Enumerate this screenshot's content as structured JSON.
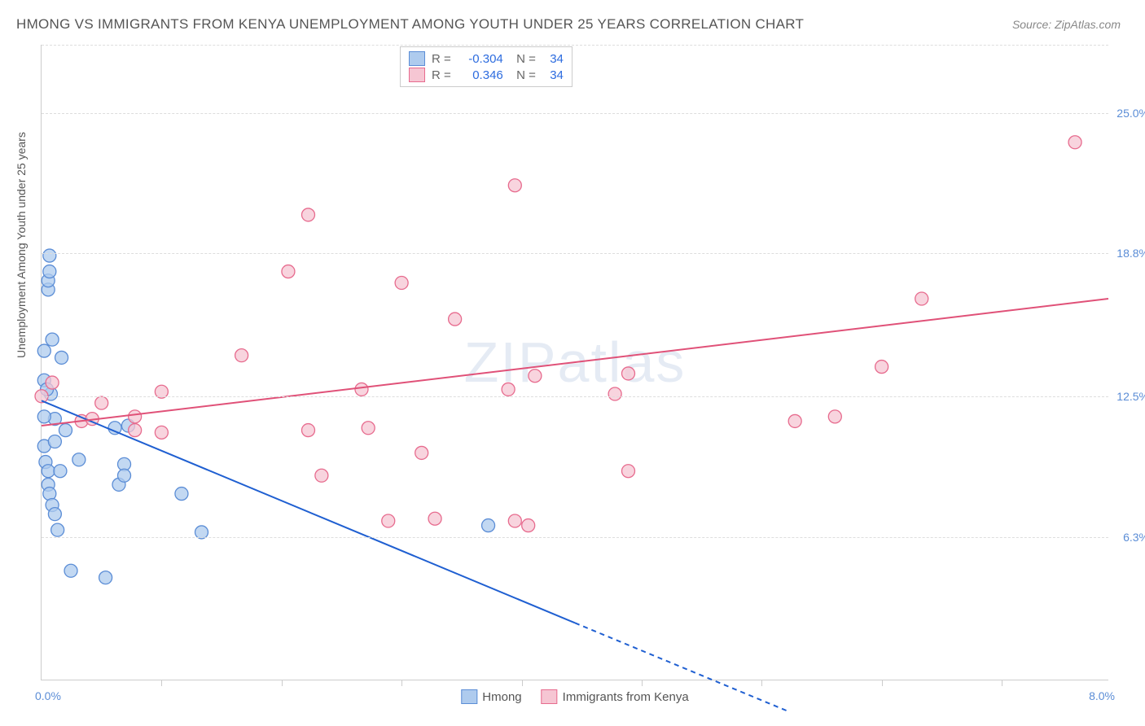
{
  "title": "HMONG VS IMMIGRANTS FROM KENYA UNEMPLOYMENT AMONG YOUTH UNDER 25 YEARS CORRELATION CHART",
  "source": "Source: ZipAtlas.com",
  "ylabel": "Unemployment Among Youth under 25 years",
  "watermark_a": "ZIP",
  "watermark_b": "atlas",
  "chart": {
    "type": "scatter",
    "background_color": "#ffffff",
    "grid_color": "#dddddd",
    "axis_color": "#cccccc",
    "ytick_color": "#5b8dd6",
    "xlim": [
      0.0,
      8.0
    ],
    "ylim": [
      0.0,
      28.0
    ],
    "yticks": [
      {
        "v": 6.3,
        "label": "6.3%"
      },
      {
        "v": 12.5,
        "label": "12.5%"
      },
      {
        "v": 18.8,
        "label": "18.8%"
      },
      {
        "v": 25.0,
        "label": "25.0%"
      }
    ],
    "xticks": [
      0.9,
      1.8,
      2.7,
      3.6,
      4.5,
      5.4,
      6.3,
      7.2
    ],
    "xlab_left": "0.0%",
    "xlab_right": "8.0%",
    "series": [
      {
        "name": "Hmong",
        "color_fill": "#aecbee",
        "color_stroke": "#5b8dd6",
        "marker_r": 8,
        "marker_opacity": 0.75,
        "trend": {
          "x1": 0.0,
          "y1": 12.3,
          "x2": 4.0,
          "y2": 2.5,
          "dash_after_x": 4.0,
          "x_end": 5.6,
          "y_end": -1.4,
          "width": 2,
          "color": "#1f5fd1"
        },
        "R": "-0.304",
        "N": "34",
        "points": [
          [
            0.02,
            14.5
          ],
          [
            0.02,
            13.2
          ],
          [
            0.05,
            17.2
          ],
          [
            0.05,
            17.6
          ],
          [
            0.06,
            18.0
          ],
          [
            0.06,
            18.7
          ],
          [
            0.02,
            10.3
          ],
          [
            0.03,
            9.6
          ],
          [
            0.05,
            9.2
          ],
          [
            0.05,
            8.6
          ],
          [
            0.06,
            8.2
          ],
          [
            0.07,
            12.6
          ],
          [
            0.1,
            11.5
          ],
          [
            0.1,
            10.5
          ],
          [
            0.14,
            9.2
          ],
          [
            0.18,
            11.0
          ],
          [
            0.28,
            9.7
          ],
          [
            0.55,
            11.1
          ],
          [
            0.58,
            8.6
          ],
          [
            0.62,
            9.5
          ],
          [
            0.62,
            9.0
          ],
          [
            0.65,
            11.2
          ],
          [
            0.48,
            4.5
          ],
          [
            0.22,
            4.8
          ],
          [
            0.08,
            7.7
          ],
          [
            0.1,
            7.3
          ],
          [
            0.12,
            6.6
          ],
          [
            1.05,
            8.2
          ],
          [
            1.2,
            6.5
          ],
          [
            3.35,
            6.8
          ],
          [
            0.15,
            14.2
          ],
          [
            0.08,
            15.0
          ],
          [
            0.02,
            11.6
          ],
          [
            0.04,
            12.8
          ]
        ]
      },
      {
        "name": "Immigrants from Kenya",
        "color_fill": "#f6c6d3",
        "color_stroke": "#e76b8e",
        "marker_r": 8,
        "marker_opacity": 0.75,
        "trend": {
          "x1": 0.0,
          "y1": 11.2,
          "x2": 8.0,
          "y2": 16.8,
          "width": 2,
          "color": "#e05178"
        },
        "R": "0.346",
        "N": "34",
        "points": [
          [
            0.0,
            12.5
          ],
          [
            0.3,
            11.4
          ],
          [
            0.38,
            11.5
          ],
          [
            0.7,
            11.6
          ],
          [
            0.7,
            11.0
          ],
          [
            0.9,
            12.7
          ],
          [
            1.5,
            14.3
          ],
          [
            1.85,
            18.0
          ],
          [
            2.0,
            20.5
          ],
          [
            2.4,
            12.8
          ],
          [
            2.45,
            11.1
          ],
          [
            2.7,
            17.5
          ],
          [
            2.85,
            10.0
          ],
          [
            3.1,
            15.9
          ],
          [
            2.6,
            7.0
          ],
          [
            2.95,
            7.1
          ],
          [
            3.55,
            21.8
          ],
          [
            3.5,
            12.8
          ],
          [
            3.55,
            7.0
          ],
          [
            3.7,
            13.4
          ],
          [
            3.65,
            6.8
          ],
          [
            4.3,
            12.6
          ],
          [
            4.4,
            13.5
          ],
          [
            4.4,
            9.2
          ],
          [
            5.65,
            11.4
          ],
          [
            6.3,
            13.8
          ],
          [
            6.6,
            16.8
          ],
          [
            5.95,
            11.6
          ],
          [
            7.75,
            23.7
          ],
          [
            0.08,
            13.1
          ],
          [
            0.45,
            12.2
          ],
          [
            0.9,
            10.9
          ],
          [
            2.0,
            11.0
          ],
          [
            2.1,
            9.0
          ]
        ]
      }
    ],
    "legend": [
      {
        "label": "Hmong",
        "fill": "#aecbee",
        "stroke": "#5b8dd6"
      },
      {
        "label": "Immigrants from Kenya",
        "fill": "#f6c6d3",
        "stroke": "#e76b8e"
      }
    ]
  }
}
